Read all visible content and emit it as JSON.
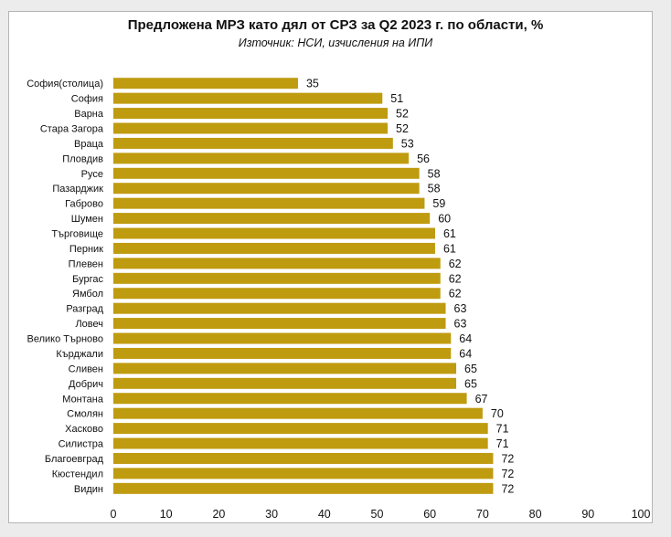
{
  "chart_data": {
    "type": "bar",
    "orientation": "horizontal",
    "title": "Предложена МРЗ като дял от СРЗ за Q2 2023 г. по области, %",
    "subtitle": "Източник: НСИ, изчисления на ИПИ",
    "categories": [
      "София(столица)",
      "София",
      "Варна",
      "Стара Загора",
      "Враца",
      "Пловдив",
      "Русе",
      "Пазарджик",
      "Габрово",
      "Шумен",
      "Търговище",
      "Перник",
      "Плевен",
      "Бургас",
      "Ямбол",
      "Разград",
      "Ловеч",
      "Велико Търново",
      "Кърджали",
      "Сливен",
      "Добрич",
      "Монтана",
      "Смолян",
      "Хасково",
      "Силистра",
      "Благоевград",
      "Кюстендил",
      "Видин"
    ],
    "values": [
      35,
      51,
      52,
      52,
      53,
      56,
      58,
      58,
      59,
      60,
      61,
      61,
      62,
      62,
      62,
      63,
      63,
      64,
      64,
      65,
      65,
      67,
      70,
      71,
      71,
      72,
      72,
      72
    ],
    "xlim": [
      0,
      100
    ],
    "xticks": [
      0,
      10,
      20,
      30,
      40,
      50,
      60,
      70,
      80,
      90,
      100
    ],
    "grid": false,
    "legend": "none",
    "bar_color": "#bf9b0f"
  }
}
